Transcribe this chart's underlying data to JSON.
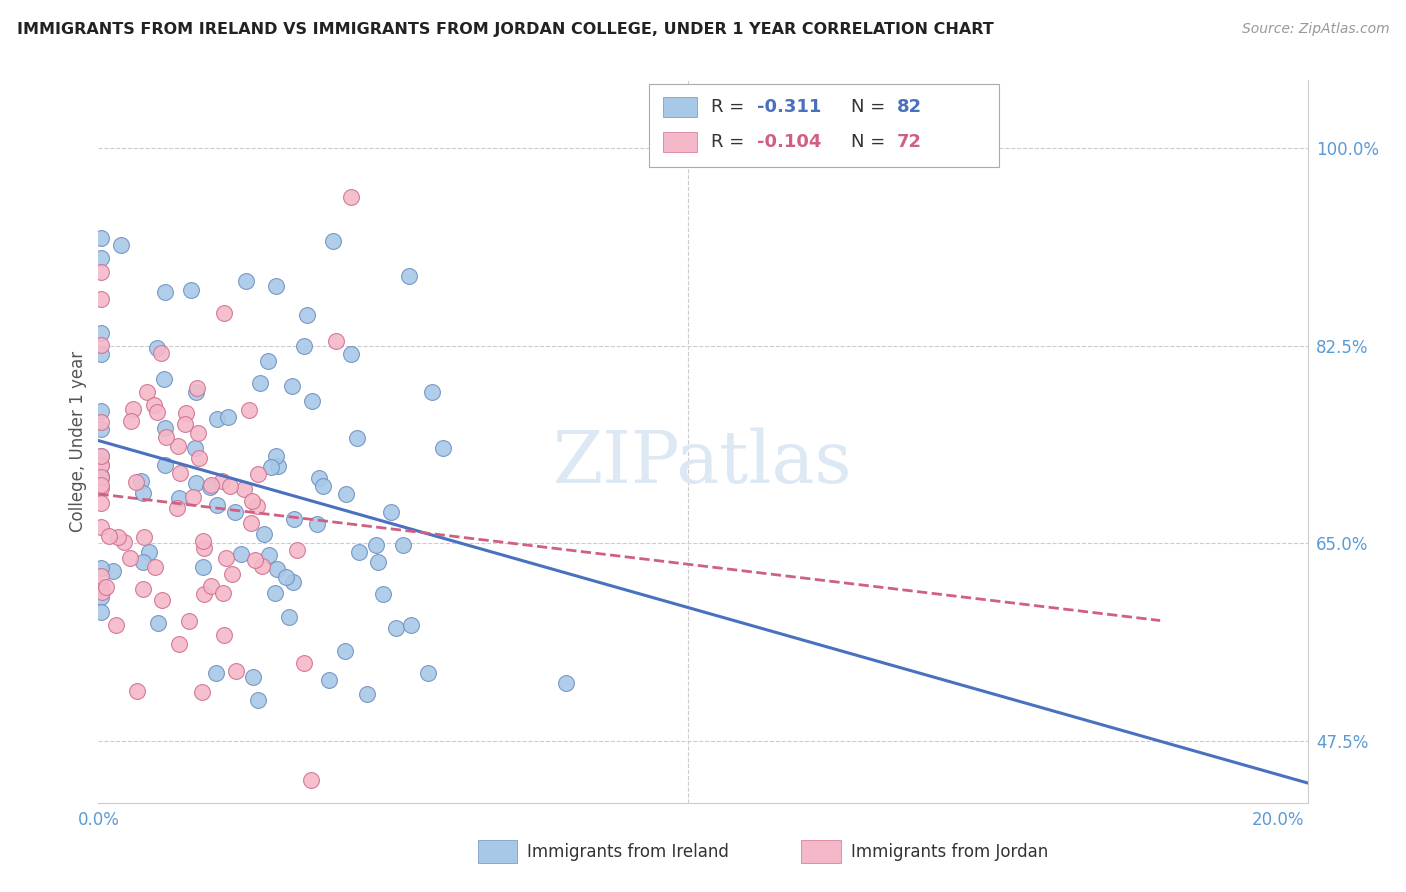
{
  "title": "IMMIGRANTS FROM IRELAND VS IMMIGRANTS FROM JORDAN COLLEGE, UNDER 1 YEAR CORRELATION CHART",
  "source": "Source: ZipAtlas.com",
  "ylabel": "College, Under 1 year",
  "ireland_R": -0.311,
  "ireland_N": 82,
  "jordan_R": -0.104,
  "jordan_N": 72,
  "ireland_color": "#a8c8e8",
  "jordan_color": "#f4b8c8",
  "ireland_edge_color": "#7090c0",
  "jordan_edge_color": "#d07090",
  "ireland_line_color": "#4a70c0",
  "jordan_line_color": "#d06080",
  "background_color": "#ffffff",
  "grid_color": "#cccccc",
  "watermark": "ZIPatlas",
  "watermark_color": "#dce8f4",
  "title_color": "#222222",
  "source_color": "#999999",
  "axis_tick_color": "#5b9bd5",
  "ylabel_color": "#555555",
  "legend_text_color": "#333333",
  "xlim": [
    0.0,
    0.205
  ],
  "ylim": [
    0.42,
    1.06
  ],
  "ytick_vals": [
    0.475,
    0.65,
    0.825,
    1.0
  ],
  "ytick_labels": [
    "47.5%",
    "65.0%",
    "82.5%",
    "100.0%"
  ],
  "xtick_vals": [
    0.0,
    0.025,
    0.05,
    0.075,
    0.1,
    0.125,
    0.15,
    0.175,
    0.2
  ],
  "xtick_labels": [
    "0.0%",
    "",
    "",
    "",
    "",
    "",
    "",
    "",
    "20.0%"
  ]
}
